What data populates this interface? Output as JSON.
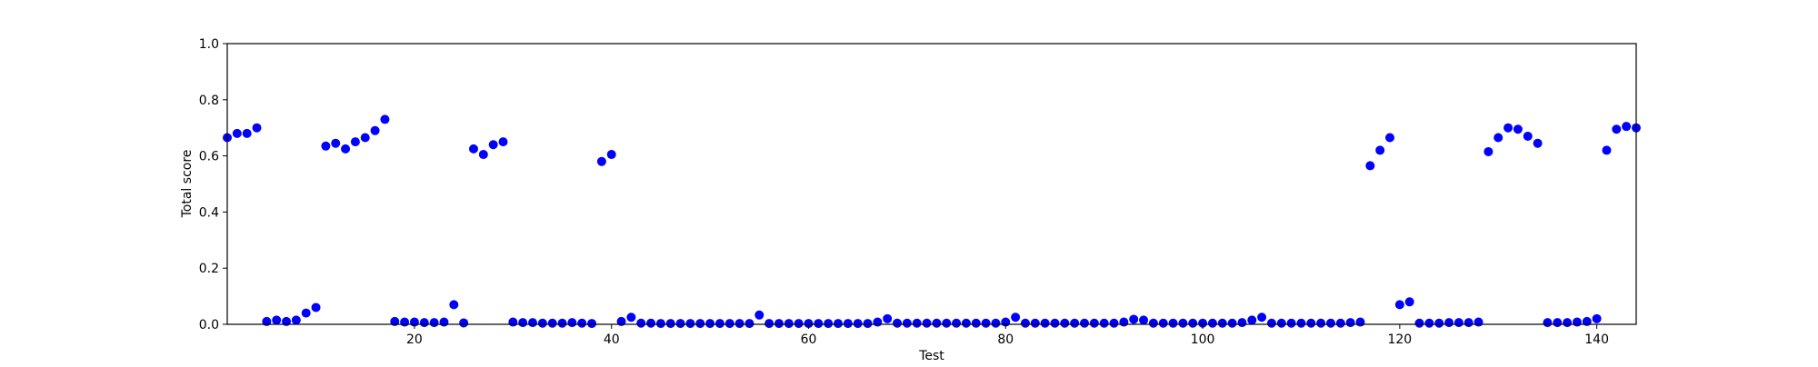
{
  "chart_data": {
    "type": "scatter",
    "title": "",
    "xlabel": "Test",
    "ylabel": "Total score",
    "xlim": [
      1,
      144
    ],
    "ylim": [
      0.0,
      1.0
    ],
    "x_ticks": [
      20,
      40,
      60,
      80,
      100,
      120,
      140
    ],
    "y_ticks": [
      "0.0",
      "0.2",
      "0.4",
      "0.6",
      "0.8",
      "1.0"
    ],
    "grid": false,
    "legend": "none",
    "marker_color": "#0000ff",
    "series": [
      {
        "x": [
          1,
          2,
          3,
          4,
          5,
          6,
          7,
          8,
          9,
          10,
          11,
          12,
          13,
          14,
          15,
          16,
          17,
          18,
          19,
          20,
          21,
          22,
          23,
          24,
          25,
          26,
          27,
          28,
          29,
          30,
          31,
          32,
          33,
          34,
          35,
          36,
          37,
          38,
          39,
          40,
          41,
          42,
          43,
          44,
          45,
          46,
          47,
          48,
          49,
          50,
          51,
          52,
          53,
          54,
          55,
          56,
          57,
          58,
          59,
          60,
          61,
          62,
          63,
          64,
          65,
          66,
          67,
          68,
          69,
          70,
          71,
          72,
          73,
          74,
          75,
          76,
          77,
          78,
          79,
          80,
          81,
          82,
          83,
          84,
          85,
          86,
          87,
          88,
          89,
          90,
          91,
          92,
          93,
          94,
          95,
          96,
          97,
          98,
          99,
          100,
          101,
          102,
          103,
          104,
          105,
          106,
          107,
          108,
          109,
          110,
          111,
          112,
          113,
          114,
          115,
          116,
          117,
          118,
          119,
          120,
          121,
          122,
          123,
          124,
          125,
          126,
          127,
          128,
          129,
          130,
          131,
          132,
          133,
          134,
          135,
          136,
          137,
          138,
          139,
          140,
          141,
          142,
          143,
          144
        ],
        "y": [
          0.665,
          0.68,
          0.68,
          0.7,
          0.01,
          0.015,
          0.01,
          0.015,
          0.04,
          0.06,
          0.635,
          0.645,
          0.625,
          0.65,
          0.665,
          0.69,
          0.73,
          0.01,
          0.008,
          0.008,
          0.006,
          0.006,
          0.008,
          0.07,
          0.005,
          0.625,
          0.605,
          0.64,
          0.65,
          0.008,
          0.006,
          0.006,
          0.004,
          0.004,
          0.004,
          0.006,
          0.004,
          0.003,
          0.58,
          0.605,
          0.01,
          0.025,
          0.004,
          0.004,
          0.003,
          0.003,
          0.003,
          0.003,
          0.003,
          0.003,
          0.003,
          0.003,
          0.003,
          0.003,
          0.033,
          0.003,
          0.003,
          0.003,
          0.003,
          0.003,
          0.003,
          0.003,
          0.003,
          0.003,
          0.003,
          0.003,
          0.008,
          0.02,
          0.004,
          0.004,
          0.004,
          0.004,
          0.004,
          0.004,
          0.004,
          0.004,
          0.004,
          0.004,
          0.004,
          0.008,
          0.025,
          0.004,
          0.004,
          0.004,
          0.004,
          0.004,
          0.004,
          0.004,
          0.004,
          0.004,
          0.004,
          0.008,
          0.018,
          0.015,
          0.004,
          0.004,
          0.004,
          0.004,
          0.004,
          0.004,
          0.004,
          0.004,
          0.004,
          0.006,
          0.015,
          0.025,
          0.004,
          0.004,
          0.004,
          0.004,
          0.004,
          0.004,
          0.004,
          0.004,
          0.006,
          0.008,
          0.565,
          0.62,
          0.665,
          0.07,
          0.08,
          0.004,
          0.004,
          0.004,
          0.006,
          0.006,
          0.006,
          0.008,
          0.615,
          0.665,
          0.7,
          0.695,
          0.67,
          0.645,
          0.006,
          0.006,
          0.006,
          0.008,
          0.01,
          0.02,
          0.62,
          0.695,
          0.705,
          0.7
        ]
      }
    ]
  }
}
